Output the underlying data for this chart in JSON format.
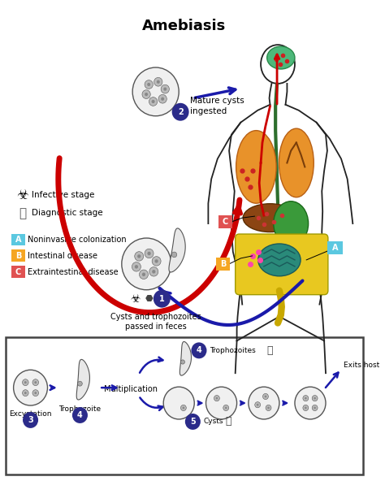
{
  "title": "Amebiasis",
  "title_fontsize": 13,
  "title_fontweight": "bold",
  "bg_color": "#ffffff",
  "color_labels": [
    {
      "letter": "A",
      "color": "#5bc8e0",
      "text": "Noninvasive colonization"
    },
    {
      "letter": "B",
      "color": "#f5a623",
      "text": "Intestinal disease"
    },
    {
      "letter": "C",
      "color": "#e05252",
      "text": "Extraintestinal disease"
    }
  ],
  "red_arrow_color": "#cc0000",
  "blue_arrow_color": "#1a1aaa",
  "dark_navy": "#2b2b8a",
  "body_color": "#222222",
  "brain_color": "#4db87a",
  "lung_color": "#e8922a",
  "liver_color": "#8B4513",
  "gi_color": "#c8b820",
  "intestine_color": "#3a9a70",
  "gi_yellow": "#e8c820"
}
